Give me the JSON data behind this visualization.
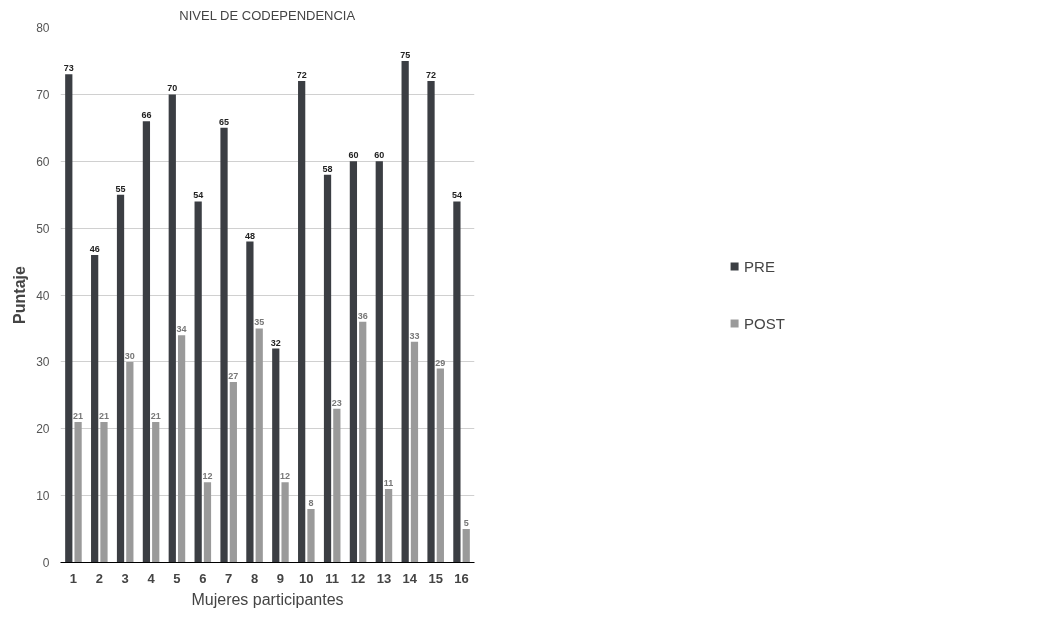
{
  "chart_data": {
    "type": "bar",
    "title": "NIVEL DE CODEPENDENCIA",
    "xlabel": "Mujeres participantes",
    "ylabel": "Puntaje",
    "categories": [
      "1",
      "2",
      "3",
      "4",
      "5",
      "6",
      "7",
      "8",
      "9",
      "10",
      "11",
      "12",
      "13",
      "14",
      "15",
      "16"
    ],
    "series": [
      {
        "name": "PRE",
        "color": "#3b3e43",
        "values": [
          73,
          46,
          55,
          66,
          70,
          54,
          65,
          48,
          32,
          72,
          58,
          60,
          60,
          75,
          72,
          54
        ]
      },
      {
        "name": "POST",
        "color": "#9a9a9a",
        "values": [
          21,
          21,
          30,
          21,
          34,
          12,
          27,
          35,
          12,
          8,
          23,
          36,
          11,
          33,
          29,
          5
        ]
      }
    ],
    "ylim": [
      0,
      80
    ],
    "yticks": [
      0,
      10,
      20,
      30,
      40,
      50,
      60,
      70,
      80
    ],
    "grid": "y",
    "legend": "right",
    "data_labels": true
  }
}
